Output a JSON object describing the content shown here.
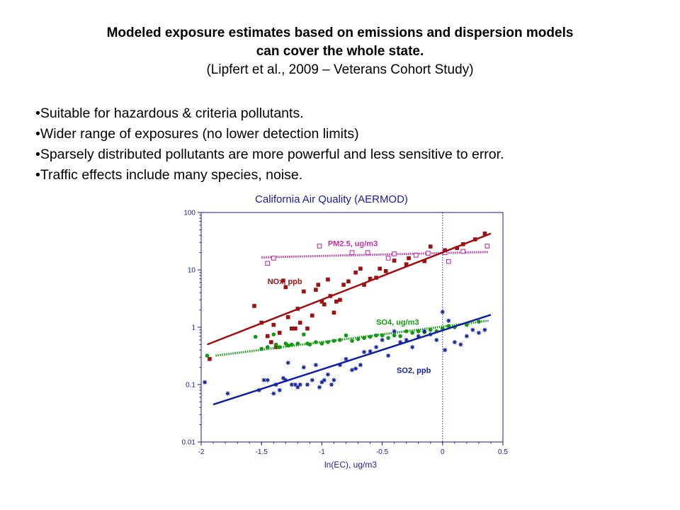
{
  "title": {
    "line1": "Modeled exposure estimates based on emissions and dispersion models",
    "line2": "can cover the whole state.",
    "citation": "(Lipfert et al., 2009 – Veterans Cohort Study)"
  },
  "bullets": [
    "•Suitable for hazardous & criteria pollutants.",
    "•Wider range of exposures (no lower detection limits)",
    "•Sparsely distributed pollutants are more powerful and less sensitive to error.",
    "•Traffic effects include many species, noise."
  ],
  "chart_data": {
    "type": "scatter",
    "title": "California Air Quality (AERMOD)",
    "xlabel": "ln(EC), ug/m3",
    "ylabel": "",
    "xlim": [
      -2,
      0.5
    ],
    "ylim": [
      0.01,
      100
    ],
    "yscale": "log",
    "xticks": [
      -2,
      -1.5,
      -1,
      -0.5,
      0,
      0.5
    ],
    "xtick_labels": [
      "-2",
      "-1.5",
      "-1",
      "-0.5",
      "0",
      "0.5"
    ],
    "yticks": [
      0.01,
      0.1,
      1,
      10,
      100
    ],
    "ytick_labels": [
      "0.01",
      "0.1",
      "1",
      "10",
      "100"
    ],
    "reference_line_x": 0,
    "colors": {
      "axis": "#1a1aa0",
      "pm25": "#c030b0",
      "nox": "#a01010",
      "so4": "#109a10",
      "so2": "#1020a0"
    },
    "series": [
      {
        "name": "PM2.5, ug/m3",
        "color": "#c030b0",
        "marker": "open-square",
        "trend": "dotted",
        "fit": [
          [
            -1.5,
            16.5
          ],
          [
            0.38,
            20.5
          ]
        ],
        "label_pos": [
          -0.95,
          26
        ],
        "points": [
          [
            -1.45,
            13
          ],
          [
            -1.4,
            16
          ],
          [
            -1.02,
            26
          ],
          [
            -0.75,
            20
          ],
          [
            -0.62,
            20
          ],
          [
            -0.45,
            16
          ],
          [
            -0.4,
            19
          ],
          [
            -0.22,
            18
          ],
          [
            -0.12,
            19.5
          ],
          [
            0.02,
            20
          ],
          [
            0.05,
            14
          ],
          [
            0.17,
            21
          ],
          [
            0.37,
            26
          ]
        ]
      },
      {
        "name": "NOx, ppb",
        "color": "#a01010",
        "marker": "filled-square",
        "trend": "solid",
        "fit": [
          [
            -1.95,
            0.5
          ],
          [
            0.4,
            43
          ]
        ],
        "label_pos": [
          -1.45,
          5.7
        ],
        "points": [
          [
            -1.93,
            0.28
          ],
          [
            -1.56,
            2.35
          ],
          [
            -1.5,
            1.2
          ],
          [
            -1.45,
            0.7
          ],
          [
            -1.42,
            0.55
          ],
          [
            -1.4,
            1.1
          ],
          [
            -1.38,
            0.45
          ],
          [
            -1.35,
            0.8
          ],
          [
            -1.32,
            6.5
          ],
          [
            -1.3,
            5
          ],
          [
            -1.28,
            1.5
          ],
          [
            -1.25,
            0.95
          ],
          [
            -1.22,
            0.95
          ],
          [
            -1.2,
            2.1
          ],
          [
            -1.18,
            1.2
          ],
          [
            -1.15,
            4.2
          ],
          [
            -1.12,
            0.95
          ],
          [
            -1.08,
            1.6
          ],
          [
            -1.05,
            4.5
          ],
          [
            -1.03,
            5.5
          ],
          [
            -1.0,
            2.8
          ],
          [
            -0.98,
            2.5
          ],
          [
            -0.95,
            6.8
          ],
          [
            -0.93,
            3.5
          ],
          [
            -0.9,
            1.8
          ],
          [
            -0.88,
            2.8
          ],
          [
            -0.85,
            3
          ],
          [
            -0.82,
            5.5
          ],
          [
            -0.78,
            6.3
          ],
          [
            -0.72,
            9
          ],
          [
            -0.68,
            10.5
          ],
          [
            -0.65,
            5.5
          ],
          [
            -0.6,
            7
          ],
          [
            -0.55,
            7.3
          ],
          [
            -0.52,
            10.5
          ],
          [
            -0.47,
            9.5
          ],
          [
            -0.4,
            14.5
          ],
          [
            -0.3,
            12.5
          ],
          [
            -0.28,
            16
          ],
          [
            -0.15,
            14.2
          ],
          [
            -0.1,
            25.5
          ],
          [
            0.02,
            22
          ],
          [
            0.12,
            24
          ],
          [
            0.17,
            28
          ],
          [
            0.27,
            34
          ],
          [
            0.35,
            43
          ]
        ]
      },
      {
        "name": "SO4, ug/m3",
        "color": "#109a10",
        "marker": "filled-circle",
        "trend": "dotted",
        "fit": [
          [
            -1.88,
            0.32
          ],
          [
            0.38,
            1.3
          ]
        ],
        "label_pos": [
          -0.55,
          1.1
        ],
        "points": [
          [
            -1.95,
            0.32
          ],
          [
            -1.55,
            0.68
          ],
          [
            -1.5,
            0.42
          ],
          [
            -1.45,
            0.45
          ],
          [
            -1.4,
            0.75
          ],
          [
            -1.38,
            0.5
          ],
          [
            -1.35,
            0.45
          ],
          [
            -1.3,
            0.52
          ],
          [
            -1.28,
            0.48
          ],
          [
            -1.25,
            0.5
          ],
          [
            -1.2,
            0.52
          ],
          [
            -1.15,
            0.75
          ],
          [
            -1.12,
            0.52
          ],
          [
            -1.1,
            0.5
          ],
          [
            -1.05,
            0.55
          ],
          [
            -1.0,
            0.52
          ],
          [
            -0.95,
            0.55
          ],
          [
            -0.9,
            0.58
          ],
          [
            -0.85,
            0.6
          ],
          [
            -0.8,
            0.72
          ],
          [
            -0.75,
            0.58
          ],
          [
            -0.7,
            0.62
          ],
          [
            -0.65,
            0.65
          ],
          [
            -0.6,
            0.68
          ],
          [
            -0.55,
            0.72
          ],
          [
            -0.5,
            0.72
          ],
          [
            -0.45,
            0.65
          ],
          [
            -0.4,
            0.72
          ],
          [
            -0.35,
            0.7
          ],
          [
            -0.3,
            0.85
          ],
          [
            -0.25,
            0.8
          ],
          [
            -0.2,
            0.85
          ],
          [
            -0.15,
            0.82
          ],
          [
            -0.1,
            0.9
          ],
          [
            -0.05,
            0.85
          ],
          [
            0.0,
            0.95
          ],
          [
            0.05,
            1.05
          ],
          [
            0.1,
            1.0
          ],
          [
            0.2,
            1.1
          ],
          [
            0.3,
            1.25
          ]
        ]
      },
      {
        "name": "SO2, ppb",
        "color": "#1020a0",
        "marker": "star",
        "trend": "solid",
        "fit": [
          [
            -1.9,
            0.045
          ],
          [
            0.4,
            1.65
          ]
        ],
        "label_pos": [
          -0.38,
          0.16
        ],
        "points": [
          [
            -1.97,
            0.11
          ],
          [
            -1.78,
            0.07
          ],
          [
            -1.52,
            0.08
          ],
          [
            -1.48,
            0.12
          ],
          [
            -1.45,
            0.12
          ],
          [
            -1.4,
            0.07
          ],
          [
            -1.38,
            0.1
          ],
          [
            -1.35,
            0.08
          ],
          [
            -1.32,
            0.13
          ],
          [
            -1.3,
            0.12
          ],
          [
            -1.28,
            0.24
          ],
          [
            -1.25,
            0.1
          ],
          [
            -1.22,
            0.1
          ],
          [
            -1.2,
            0.09
          ],
          [
            -1.18,
            0.1
          ],
          [
            -1.15,
            0.2
          ],
          [
            -1.12,
            0.1
          ],
          [
            -1.08,
            0.12
          ],
          [
            -1.05,
            0.22
          ],
          [
            -1.02,
            0.09
          ],
          [
            -1.0,
            0.11
          ],
          [
            -0.98,
            0.12
          ],
          [
            -0.95,
            0.15
          ],
          [
            -0.92,
            0.1
          ],
          [
            -0.9,
            0.12
          ],
          [
            -0.85,
            0.22
          ],
          [
            -0.8,
            0.28
          ],
          [
            -0.75,
            0.18
          ],
          [
            -0.72,
            0.19
          ],
          [
            -0.68,
            0.22
          ],
          [
            -0.65,
            0.37
          ],
          [
            -0.6,
            0.38
          ],
          [
            -0.55,
            0.45
          ],
          [
            -0.5,
            0.6
          ],
          [
            -0.45,
            0.32
          ],
          [
            -0.4,
            0.85
          ],
          [
            -0.35,
            0.55
          ],
          [
            -0.3,
            0.6
          ],
          [
            -0.25,
            0.45
          ],
          [
            -0.2,
            0.7
          ],
          [
            -0.15,
            0.85
          ],
          [
            -0.1,
            0.75
          ],
          [
            -0.05,
            0.6
          ],
          [
            0.0,
            1.85
          ],
          [
            0.02,
            0.4
          ],
          [
            0.05,
            1.3
          ],
          [
            0.1,
            0.55
          ],
          [
            0.15,
            0.5
          ],
          [
            0.2,
            0.7
          ],
          [
            0.25,
            0.9
          ],
          [
            0.3,
            0.8
          ],
          [
            0.35,
            0.9
          ]
        ]
      }
    ]
  }
}
